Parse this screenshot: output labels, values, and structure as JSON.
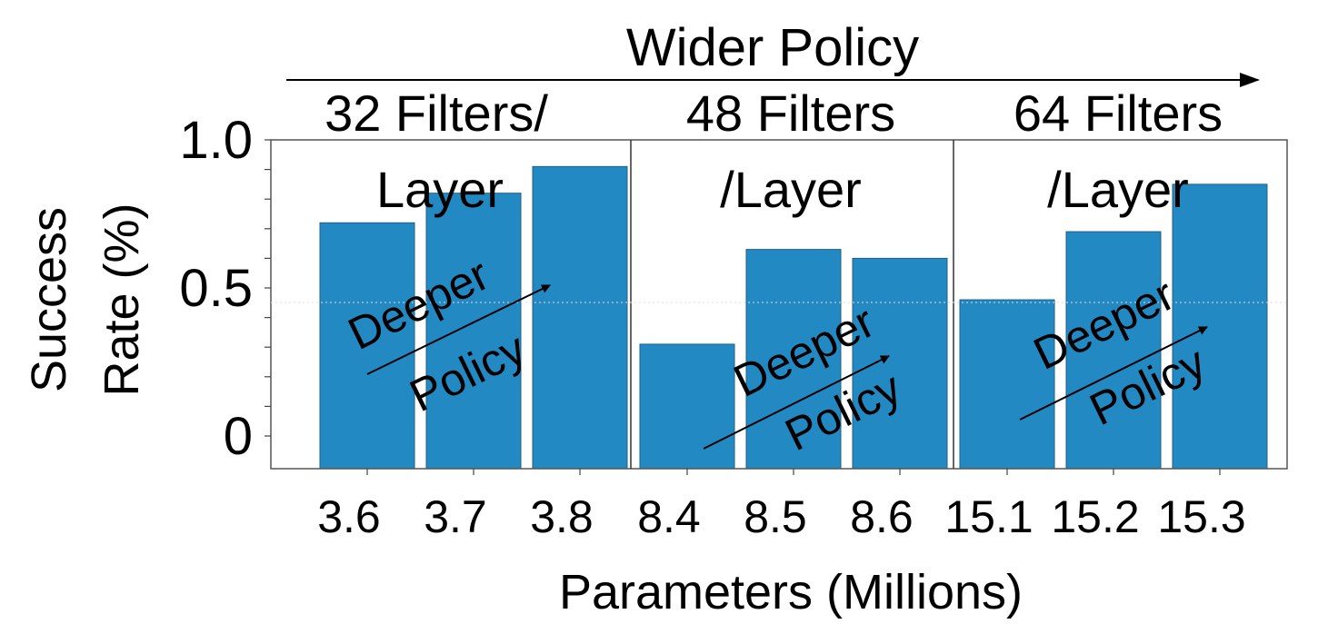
{
  "chart_data": {
    "type": "bar",
    "title": "Wider Policy",
    "xlabel": "Parameters (Millions)",
    "ylabel_line1": "Success",
    "ylabel_line2": "Rate (%)",
    "ylim": [
      0,
      1.0
    ],
    "yticks": [
      0,
      0.5,
      1.0
    ],
    "ytick_labels": [
      "0",
      "0.5",
      "1.0"
    ],
    "categories": [
      "3.6",
      "3.7",
      "3.8",
      "8.4",
      "8.5",
      "8.6",
      "15.1",
      "15.2",
      "15.3"
    ],
    "values": [
      0.72,
      0.82,
      0.91,
      0.31,
      0.63,
      0.6,
      0.46,
      0.69,
      0.85
    ],
    "bar_color": "#2389c2",
    "grid": false,
    "groups": [
      {
        "label_line1": "32 Filters/",
        "label_line2": "Layer"
      },
      {
        "label_line1": "48 Filters",
        "label_line2": "/Layer"
      },
      {
        "label_line1": "64 Filters",
        "label_line2": "/Layer"
      }
    ],
    "annotations": {
      "arrow_label_line1": "Deeper",
      "arrow_label_line2": "Policy"
    }
  }
}
